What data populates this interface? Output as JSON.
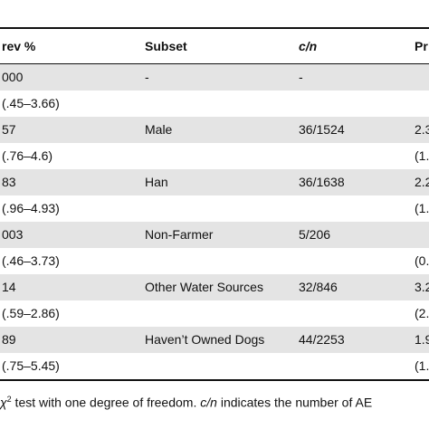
{
  "header": {
    "columns": [
      "rev %",
      "Subset",
      "c/n",
      "Pr"
    ]
  },
  "table": {
    "rows": [
      [
        "000",
        "-",
        "-",
        null
      ],
      [
        "(.45–3.66)",
        null,
        null,
        null
      ],
      [
        "57",
        "Male",
        "36/1524",
        "2.3"
      ],
      [
        "(.76–4.6)",
        null,
        null,
        "(1."
      ],
      [
        "83",
        "Han",
        "36/1638",
        "2.2"
      ],
      [
        "(.96–4.93)",
        null,
        null,
        "(1."
      ],
      [
        "003",
        "Non-Farmer",
        "5/206",
        null
      ],
      [
        "(.46–3.73)",
        null,
        null,
        "(0."
      ],
      [
        "14",
        "Other Water Sources",
        "32/846",
        "3.2"
      ],
      [
        "(.59–2.86)",
        null,
        null,
        "(2."
      ],
      [
        "89",
        "Haven’t Owned Dogs",
        "44/2253",
        "1.9"
      ],
      [
        "(.75–5.45)",
        null,
        null,
        "(1."
      ]
    ]
  },
  "footnote": {
    "symbol": "χ",
    "superscript": "2",
    "text1": " test with one degree of freedom. ",
    "italic": "c/n",
    "text2": " indicates the number of AE"
  }
}
